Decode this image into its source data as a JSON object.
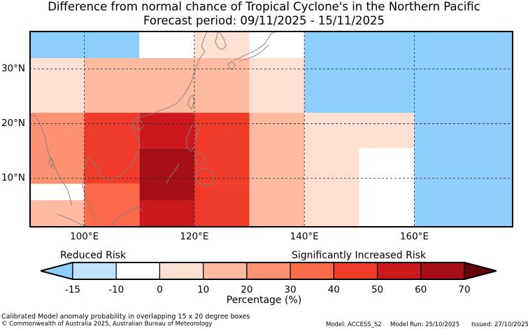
{
  "title": {
    "line1": "Difference from normal chance of Tropical Cyclone's in the Northern Pacific",
    "line2": "Forecast period: 09/11/2025 - 15/11/2025"
  },
  "map": {
    "lon_range": [
      90,
      178
    ],
    "lat_range": [
      1,
      37
    ],
    "lat_labels": [
      "30°N",
      "20°N",
      "10°N"
    ],
    "lon_labels": [
      "100°E",
      "120°E",
      "140°E",
      "160°E"
    ],
    "grid_lats": [
      30,
      20,
      10
    ],
    "grid_lons": [
      100,
      120,
      140,
      160
    ],
    "cells": [
      {
        "lon": [
          90,
          110
        ],
        "lat": [
          32,
          37
        ],
        "value": -15
      },
      {
        "lon": [
          110,
          120
        ],
        "lat": [
          32,
          37
        ],
        "value": -10
      },
      {
        "lon": [
          120,
          130
        ],
        "lat": [
          32,
          37
        ],
        "value": 0
      },
      {
        "lon": [
          130,
          140
        ],
        "lat": [
          32,
          37
        ],
        "value": -10
      },
      {
        "lon": [
          140,
          178
        ],
        "lat": [
          32,
          37
        ],
        "value": -15
      },
      {
        "lon": [
          90,
          100
        ],
        "lat": [
          22,
          32
        ],
        "value": 0
      },
      {
        "lon": [
          100,
          130
        ],
        "lat": [
          22,
          32
        ],
        "value": 10
      },
      {
        "lon": [
          130,
          140
        ],
        "lat": [
          22,
          32
        ],
        "value": 0
      },
      {
        "lon": [
          140,
          178
        ],
        "lat": [
          22,
          32
        ],
        "value": -15
      },
      {
        "lon": [
          90,
          100
        ],
        "lat": [
          9,
          22
        ],
        "value": 20
      },
      {
        "lon": [
          100,
          110
        ],
        "lat": [
          9,
          22
        ],
        "value": 40
      },
      {
        "lon": [
          110,
          120
        ],
        "lat": [
          15.5,
          22
        ],
        "value": 50
      },
      {
        "lon": [
          110,
          120
        ],
        "lat": [
          6,
          15.5
        ],
        "value": 60
      },
      {
        "lon": [
          120,
          130
        ],
        "lat": [
          9,
          22
        ],
        "value": 40
      },
      {
        "lon": [
          130,
          140
        ],
        "lat": [
          9,
          22
        ],
        "value": 10
      },
      {
        "lon": [
          140,
          150
        ],
        "lat": [
          9,
          22
        ],
        "value": 0
      },
      {
        "lon": [
          150,
          160
        ],
        "lat": [
          15.5,
          22
        ],
        "value": 0
      },
      {
        "lon": [
          150,
          160
        ],
        "lat": [
          9,
          15.5
        ],
        "value": -10
      },
      {
        "lon": [
          160,
          178
        ],
        "lat": [
          9,
          22
        ],
        "value": -15
      },
      {
        "lon": [
          90,
          100
        ],
        "lat": [
          1,
          6
        ],
        "value": 10
      },
      {
        "lon": [
          100,
          110
        ],
        "lat": [
          1,
          9
        ],
        "value": 30
      },
      {
        "lon": [
          110,
          120
        ],
        "lat": [
          1,
          6
        ],
        "value": 50
      },
      {
        "lon": [
          120,
          130
        ],
        "lat": [
          1,
          9
        ],
        "value": 40
      },
      {
        "lon": [
          130,
          140
        ],
        "lat": [
          1,
          9
        ],
        "value": 10
      },
      {
        "lon": [
          140,
          150
        ],
        "lat": [
          1,
          9
        ],
        "value": 0
      },
      {
        "lon": [
          150,
          160
        ],
        "lat": [
          1,
          9
        ],
        "value": -10
      },
      {
        "lon": [
          160,
          178
        ],
        "lat": [
          1,
          9
        ],
        "value": -15
      }
    ]
  },
  "legend": {
    "reduced_label": "Reduced Risk",
    "increased_label": "Significantly Increased Risk",
    "ticks": [
      "-15",
      "-10",
      "0",
      "10",
      "20",
      "30",
      "40",
      "50",
      "60",
      "70"
    ],
    "bins": [
      {
        "min": -15,
        "max": -10,
        "color": "#c0e3fb"
      },
      {
        "min": -10,
        "max": 0,
        "color": "#ffffff"
      },
      {
        "min": 0,
        "max": 10,
        "color": "#fee0d2"
      },
      {
        "min": 10,
        "max": 20,
        "color": "#fcbba1"
      },
      {
        "min": 20,
        "max": 30,
        "color": "#fc9272"
      },
      {
        "min": 30,
        "max": 40,
        "color": "#fb6a4a"
      },
      {
        "min": 40,
        "max": 50,
        "color": "#ef3b2c"
      },
      {
        "min": 50,
        "max": 60,
        "color": "#cb181d"
      },
      {
        "min": 60,
        "max": 70,
        "color": "#a50f15"
      }
    ],
    "under_color": "#8ecfff",
    "over_color": "#67000d",
    "axis_label": "Percentage (%)"
  },
  "colors": {
    "coast": "#808080",
    "grid": "#222222"
  },
  "footer": {
    "note": "Calibrated Model anomaly probability in overlapping 15 x 20 degree boxes",
    "copyright": "© Commonwealth of Australia 2025, Australian Bureau of Meteorology",
    "model": "Model: ACCESS_S2",
    "run": "Model Run: 25/10/2025",
    "issued": "Issued: 27/10/2025"
  }
}
